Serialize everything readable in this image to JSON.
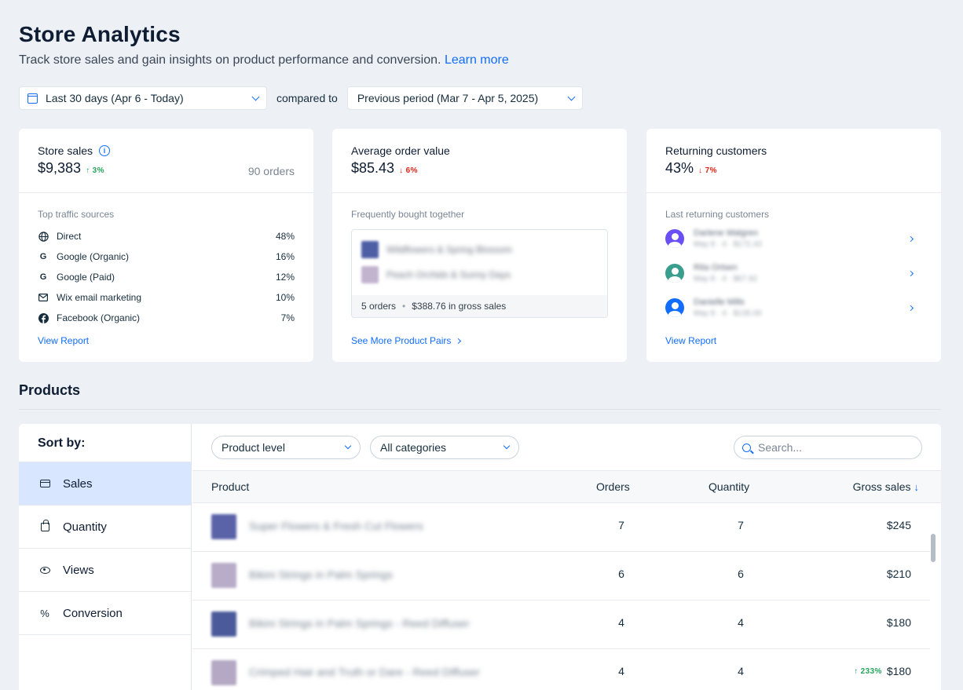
{
  "header": {
    "title": "Store Analytics",
    "subtitle": "Track store sales and gain insights on product performance and conversion.",
    "learn_more": "Learn more"
  },
  "filters": {
    "date_range": "Last 30 days (Apr 6 - Today)",
    "compared_to_label": "compared to",
    "compare_range": "Previous period (Mar 7 - Apr 5, 2025)"
  },
  "cards": {
    "store_sales": {
      "label": "Store sales",
      "value": "$9,383",
      "delta": "↑ 3%",
      "orders": "90 orders",
      "section_label": "Top traffic sources",
      "sources": [
        {
          "icon": "globe-icon",
          "name": "Direct",
          "pct": "48%"
        },
        {
          "icon": "google-icon",
          "name": "Google (Organic)",
          "pct": "16%"
        },
        {
          "icon": "google-icon",
          "name": "Google (Paid)",
          "pct": "12%"
        },
        {
          "icon": "mail-icon",
          "name": "Wix email marketing",
          "pct": "10%"
        },
        {
          "icon": "facebook-icon",
          "name": "Facebook (Organic)",
          "pct": "7%"
        }
      ],
      "link": "View Report"
    },
    "avg_order": {
      "label": "Average order value",
      "value": "$85.43",
      "delta": "↓ 6%",
      "section_label": "Frequently bought together",
      "pair": [
        "Wildflowers & Spring Blossom",
        "Peach Orchids & Sunny Days"
      ],
      "pair_orders": "5 orders",
      "pair_sales": "$388.76 in gross sales",
      "link": "See More Product Pairs"
    },
    "returning": {
      "label": "Returning customers",
      "value": "43%",
      "delta": "↓ 7%",
      "section_label": "Last returning customers",
      "customers": [
        {
          "name": "Darlene Walgren",
          "sub": "May 8 · 4 · $172.43",
          "color": "#6b4ff6"
        },
        {
          "name": "Rita Ortsen",
          "sub": "May 8 · 4 · $67.92",
          "color": "#3a9e8f"
        },
        {
          "name": "Danielle Mills",
          "sub": "May 8 · 4 · $135.00",
          "color": "#116dff"
        }
      ],
      "link": "View Report"
    }
  },
  "products": {
    "title": "Products",
    "sort_by_label": "Sort by:",
    "sort_options": [
      {
        "label": "Sales",
        "icon": "credit-card-icon"
      },
      {
        "label": "Quantity",
        "icon": "shopping-bag-icon"
      },
      {
        "label": "Views",
        "icon": "eye-icon"
      },
      {
        "label": "Conversion",
        "icon": "percent-icon"
      }
    ],
    "level_filter": "Product level",
    "category_filter": "All categories",
    "search_placeholder": "Search...",
    "columns": {
      "product": "Product",
      "orders": "Orders",
      "quantity": "Quantity",
      "gross": "Gross sales",
      "gross_sort": "↓"
    },
    "rows": [
      {
        "name": "Super Flowers & Fresh Cut Flowers",
        "orders": "7",
        "quantity": "7",
        "gross": "$245",
        "delta": "",
        "thumb": "#5a63a8"
      },
      {
        "name": "Bikini Strings in Palm Springs",
        "orders": "6",
        "quantity": "6",
        "gross": "$210",
        "delta": "",
        "thumb": "#b8acc8"
      },
      {
        "name": "Bikini Strings in Palm Springs - Reed Diffuser",
        "orders": "4",
        "quantity": "4",
        "gross": "$180",
        "delta": "",
        "thumb": "#4a5a9a"
      },
      {
        "name": "Crimped Hair and Truth or Dare - Reed Diffuser",
        "orders": "4",
        "quantity": "4",
        "gross": "$180",
        "delta": "↑ 233%",
        "thumb": "#b4a8c4"
      }
    ]
  },
  "colors": {
    "accent": "#116dff",
    "up": "#25a55a",
    "down": "#e62214",
    "active_sort": "#d9e6ff"
  }
}
